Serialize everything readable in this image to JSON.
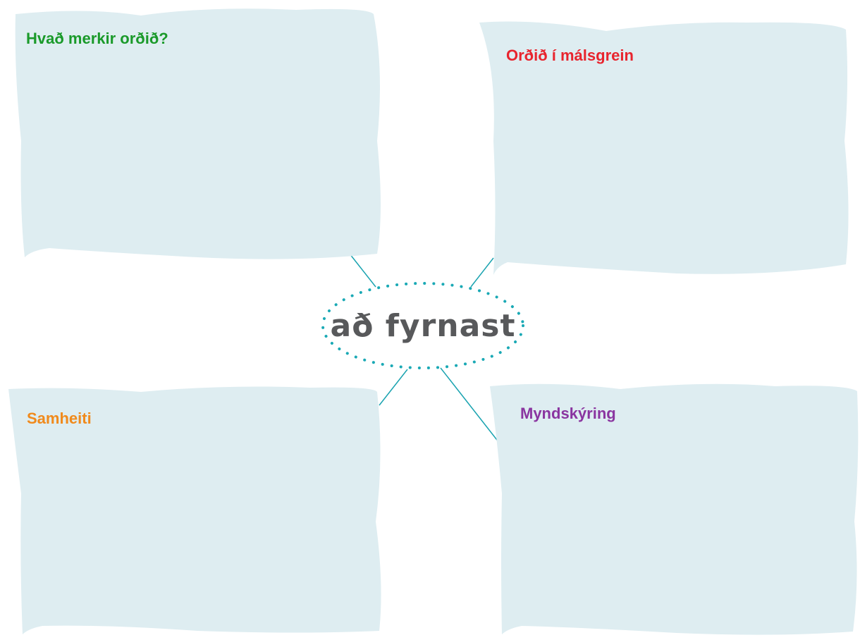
{
  "center": {
    "label": "að fyrnast"
  },
  "boxes": [
    {
      "label": "Hvað merkir orðið?"
    },
    {
      "label": "Orðið í málsgrein"
    },
    {
      "label": "Samheiti"
    },
    {
      "label": "Myndskýring"
    }
  ]
}
